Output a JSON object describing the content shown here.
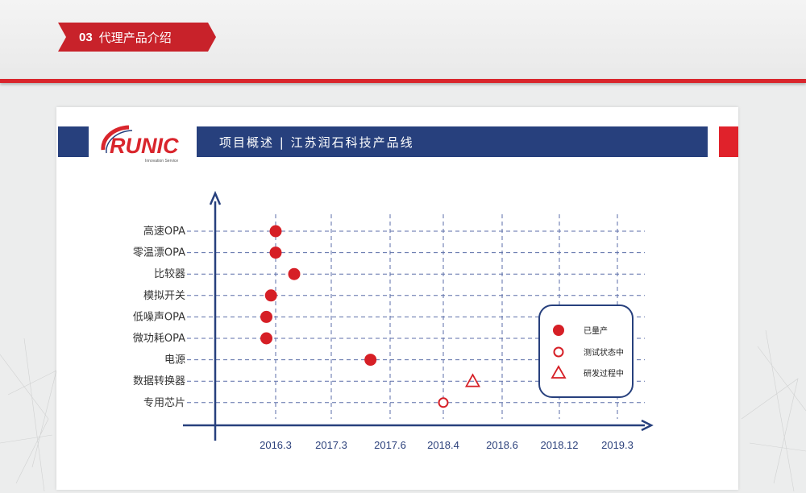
{
  "section": {
    "number": "03",
    "title": "代理产品介绍"
  },
  "header": {
    "logo_text": "RUNIC",
    "logo_tagline": "Innovation Service",
    "banner": "项目概述 | 江苏润石科技产品线"
  },
  "colors": {
    "accent_red": "#d9252c",
    "navy": "#27407d",
    "marker_red": "#d61f26"
  },
  "chart_data": {
    "type": "scatter",
    "y_categories": [
      "高速OPA",
      "零温漂OPA",
      "比较器",
      "模拟开关",
      "低噪声OPA",
      "微功耗OPA",
      "电源",
      "数据转换器",
      "专用芯片"
    ],
    "x_ticks": [
      "2016.3",
      "2017.3",
      "2017.6",
      "2018.4",
      "2018.6",
      "2018.12",
      "2019.3"
    ],
    "grid": "dashed",
    "points": [
      {
        "category": "高速OPA",
        "x": "2016.3",
        "status": "已量产"
      },
      {
        "category": "零温漂OPA",
        "x": "2016.3",
        "status": "已量产"
      },
      {
        "category": "比较器",
        "x": "2016.7",
        "status": "已量产"
      },
      {
        "category": "模拟开关",
        "x": "2016.2",
        "status": "已量产"
      },
      {
        "category": "低噪声OPA",
        "x": "2016.1",
        "status": "已量产"
      },
      {
        "category": "微功耗OPA",
        "x": "2016.1",
        "status": "已量产"
      },
      {
        "category": "电源",
        "x": "2017.5",
        "status": "已量产"
      },
      {
        "category": "数据转换器",
        "x": "2018.5",
        "status": "研发过程中"
      },
      {
        "category": "专用芯片",
        "x": "2018.4",
        "status": "测试状态中"
      }
    ],
    "legend": [
      {
        "label": "已量产",
        "marker": "filled-circle"
      },
      {
        "label": "测试状态中",
        "marker": "open-circle"
      },
      {
        "label": "研发过程中",
        "marker": "open-triangle"
      }
    ],
    "legend_position": "right"
  }
}
